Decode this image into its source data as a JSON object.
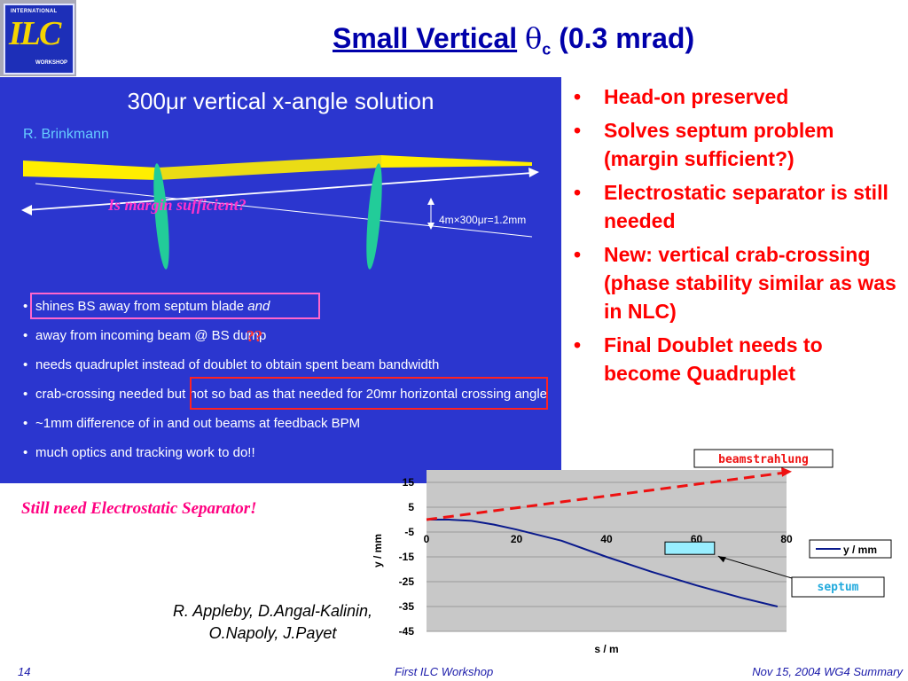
{
  "logo": {
    "top": "INTERNATIONAL",
    "middle": "ILC",
    "bottom": "WORKSHOP"
  },
  "title": {
    "main": "Small Vertical",
    "theta": "θ",
    "sub": "c",
    "rest": "(0.3 mrad)"
  },
  "panel": {
    "title": "300μr vertical x-angle solution",
    "author": "R. Brinkmann",
    "scale_label": "4m×300μr=1.2mm",
    "margin_note": "Is margin sufficient?",
    "question_marks": "??",
    "items": [
      {
        "text": "shines BS away from septum blade ",
        "em": "and"
      },
      {
        "text": "away from incoming beam @ BS dump"
      },
      {
        "text": "needs quadruplet instead of doublet to obtain spent beam bandwidth"
      },
      {
        "text": "crab-crossing needed but not so bad as that needed for 20mr horizontal crossing angle"
      },
      {
        "text": "~1mm difference of in and out beams at feedback BPM"
      },
      {
        "text": "much optics and tracking work to do!!"
      }
    ]
  },
  "bullets": [
    "Head-on preserved",
    "Solves septum problem (margin sufficient?)",
    "Electrostatic separator is still needed",
    "New: vertical crab-crossing (phase stability similar as was in NLC)",
    "Final Doublet needs to become Quadruplet"
  ],
  "still_note": "Still need Electrostatic Separator!",
  "credits": {
    "line1": "R. Appleby, D.Angal-Kalinin,",
    "line2": "O.Napoly, J.Payet"
  },
  "chart_data": {
    "type": "line",
    "xlabel": "s / m",
    "ylabel": "y / mm",
    "x_ticks": [
      0,
      20,
      40,
      60,
      80
    ],
    "y_ticks": [
      15,
      5,
      -5,
      -15,
      -25,
      -35,
      -45
    ],
    "xlim": [
      0,
      80
    ],
    "ylim": [
      -45,
      20
    ],
    "series": [
      {
        "name": "y / mm",
        "color": "#0a1a8c",
        "x": [
          0,
          5,
          10,
          15,
          20,
          30,
          40,
          50,
          60,
          70,
          78
        ],
        "y": [
          0,
          0,
          -0.5,
          -2,
          -4,
          -8.5,
          -15,
          -21,
          -26.5,
          -31.5,
          -35
        ]
      }
    ],
    "annotations": {
      "beamstrahlung_label": "beamstrahlung",
      "beamstrahlung_line": {
        "x": [
          0,
          80
        ],
        "y": [
          0,
          19
        ]
      },
      "septum_label": "septum",
      "septum_box": {
        "x": [
          53,
          64
        ],
        "y": [
          -14,
          -9
        ]
      }
    }
  },
  "footer": {
    "page": "14",
    "center": "First ILC Workshop",
    "right": "Nov 15, 2004 WG4 Summary"
  },
  "colors": {
    "title": "#0000aa",
    "panel_bg": "#2b36cf",
    "bullet_red": "#ff0000",
    "note_pink": "#ff0080",
    "footer": "#1a1aaa"
  }
}
